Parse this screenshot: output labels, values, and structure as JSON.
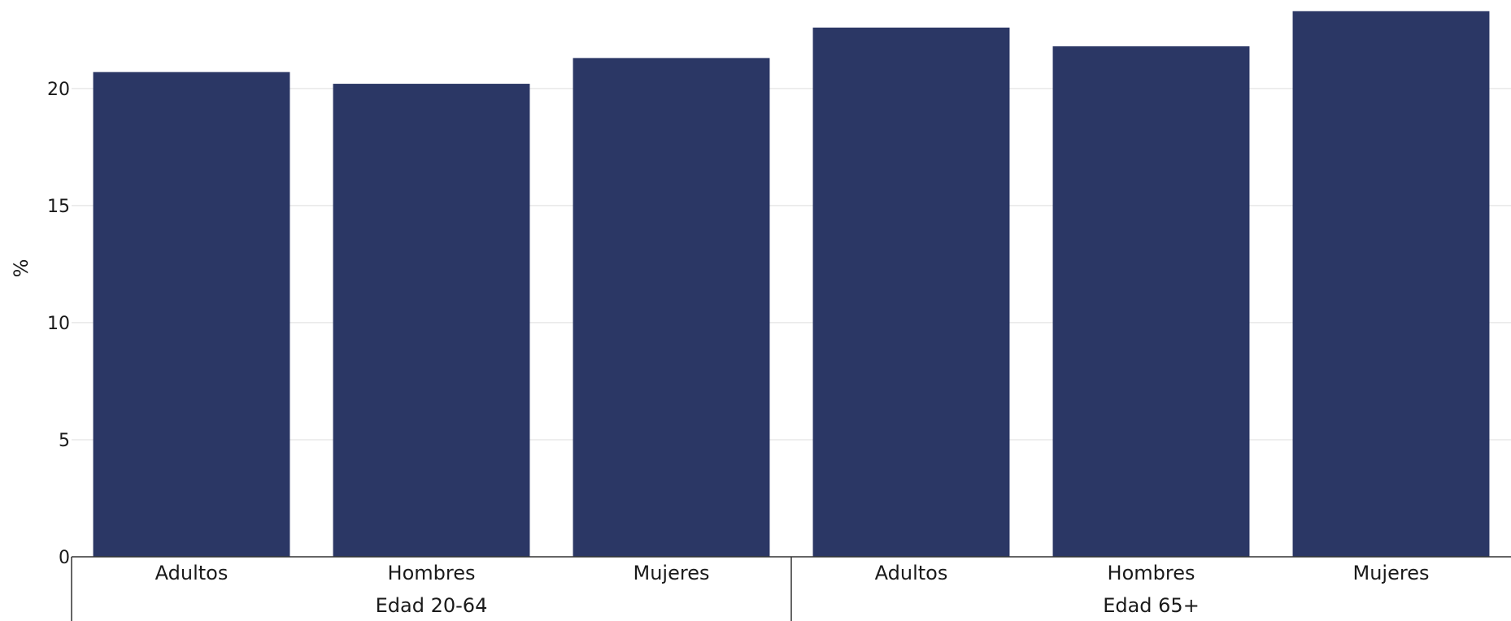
{
  "chart_data": {
    "type": "bar",
    "ylabel": "%",
    "ylim": [
      0,
      23.5
    ],
    "yticks": [
      0,
      5,
      10,
      15,
      20
    ],
    "grid": true,
    "groups": [
      {
        "label": "Edad 20-64",
        "categories": [
          "Adultos",
          "Hombres",
          "Mujeres"
        ],
        "values": [
          20.7,
          20.2,
          21.3
        ]
      },
      {
        "label": "Edad 65+",
        "categories": [
          "Adultos",
          "Hombres",
          "Mujeres"
        ],
        "values": [
          22.6,
          21.8,
          23.3
        ]
      }
    ],
    "bar_color": "#2b3765",
    "grid_color": "#e8e8e8",
    "axis_color": "#333333"
  }
}
